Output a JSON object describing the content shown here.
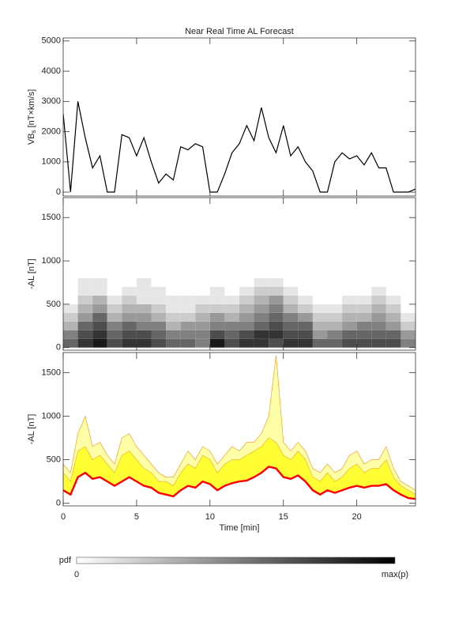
{
  "chart_data": [
    {
      "type": "line",
      "title": "Near Real Time AL Forecast",
      "ylabel": {
        "main": "VB",
        "sub": "s",
        "unit": " [nT×km/s]"
      },
      "x": [
        0,
        0.5,
        1,
        1.5,
        2,
        2.5,
        3,
        3.5,
        4,
        4.5,
        5,
        5.5,
        6,
        6.5,
        7,
        7.5,
        8,
        8.5,
        9,
        9.5,
        10,
        10.5,
        11,
        11.5,
        12,
        12.5,
        13,
        13.5,
        14,
        14.5,
        15,
        15.5,
        16,
        16.5,
        17,
        17.5,
        18,
        18.5,
        19,
        19.5,
        20,
        20.5,
        21,
        21.5,
        22,
        22.5,
        23,
        23.5,
        24
      ],
      "series": [
        {
          "color": "#000000",
          "values": [
            2600,
            0,
            3000,
            1800,
            800,
            1200,
            0,
            0,
            1900,
            1800,
            1200,
            1800,
            1000,
            300,
            600,
            400,
            1500,
            1400,
            1600,
            1500,
            0,
            0,
            600,
            1300,
            1600,
            2200,
            1700,
            2800,
            1800,
            1300,
            2200,
            1200,
            1500,
            1000,
            700,
            0,
            0,
            1000,
            1300,
            1100,
            1200,
            900,
            1300,
            800,
            800,
            0,
            0,
            0,
            100
          ]
        }
      ],
      "xlim": [
        0,
        24
      ],
      "ylim": [
        -130,
        5100
      ],
      "yticks": [
        0,
        1000,
        2000,
        3000,
        4000,
        5000
      ]
    },
    {
      "type": "heatmap",
      "ylabel": "-AL [nT]",
      "x_edges": [
        0,
        1,
        2,
        3,
        4,
        5,
        6,
        7,
        8,
        9,
        10,
        11,
        12,
        13,
        14,
        15,
        16,
        17,
        18,
        19,
        20,
        21,
        22,
        23,
        24
      ],
      "y_edges": [
        0,
        100,
        200,
        300,
        400,
        500,
        600,
        700,
        800
      ],
      "values": [
        [
          0.6,
          0.5,
          0.3,
          0.2,
          0.1,
          0,
          0,
          0
        ],
        [
          0.8,
          0.7,
          0.6,
          0.4,
          0.3,
          0.2,
          0.1,
          0.1
        ],
        [
          0.9,
          0.8,
          0.7,
          0.6,
          0.4,
          0.3,
          0.1,
          0.1
        ],
        [
          0.7,
          0.6,
          0.5,
          0.3,
          0.2,
          0.1,
          0,
          0
        ],
        [
          0.8,
          0.7,
          0.6,
          0.4,
          0.3,
          0.2,
          0.1,
          0
        ],
        [
          0.8,
          0.7,
          0.5,
          0.4,
          0.3,
          0.1,
          0.1,
          0.1
        ],
        [
          0.7,
          0.6,
          0.5,
          0.3,
          0.2,
          0.1,
          0.1,
          0
        ],
        [
          0.6,
          0.5,
          0.3,
          0.2,
          0.1,
          0.1,
          0,
          0
        ],
        [
          0.6,
          0.5,
          0.4,
          0.2,
          0.1,
          0.1,
          0,
          0
        ],
        [
          0.5,
          0.5,
          0.4,
          0.3,
          0.2,
          0.1,
          0,
          0
        ],
        [
          0.9,
          0.7,
          0.5,
          0.4,
          0.2,
          0.1,
          0.1,
          0
        ],
        [
          0.7,
          0.6,
          0.5,
          0.3,
          0.2,
          0.1,
          0,
          0
        ],
        [
          0.8,
          0.7,
          0.5,
          0.4,
          0.3,
          0.2,
          0.1,
          0
        ],
        [
          0.8,
          0.8,
          0.6,
          0.5,
          0.4,
          0.3,
          0.2,
          0.1
        ],
        [
          0.7,
          0.8,
          0.7,
          0.6,
          0.5,
          0.4,
          0.2,
          0.1
        ],
        [
          0.8,
          0.7,
          0.6,
          0.5,
          0.3,
          0.2,
          0.1,
          0
        ],
        [
          0.8,
          0.7,
          0.6,
          0.4,
          0.2,
          0.1,
          0,
          0
        ],
        [
          0.6,
          0.4,
          0.3,
          0.2,
          0.1,
          0,
          0,
          0
        ],
        [
          0.6,
          0.5,
          0.3,
          0.2,
          0.1,
          0,
          0,
          0
        ],
        [
          0.7,
          0.6,
          0.4,
          0.3,
          0.2,
          0.1,
          0,
          0
        ],
        [
          0.7,
          0.6,
          0.5,
          0.3,
          0.2,
          0.1,
          0,
          0
        ],
        [
          0.7,
          0.6,
          0.5,
          0.4,
          0.3,
          0.2,
          0.1,
          0
        ],
        [
          0.7,
          0.6,
          0.4,
          0.3,
          0.2,
          0.1,
          0,
          0
        ],
        [
          0.5,
          0.4,
          0.2,
          0.1,
          0,
          0,
          0,
          0
        ]
      ],
      "zlim": [
        0,
        1
      ],
      "colorbar": {
        "label": "pdf",
        "min_label": "0",
        "max_label": "max(p)"
      },
      "xlim": [
        0,
        24
      ],
      "ylim": [
        -30,
        1730
      ],
      "yticks": [
        0,
        500,
        1000,
        1500
      ]
    },
    {
      "type": "band",
      "ylabel": "-AL [nT]",
      "xlabel": "Time [min]",
      "x": [
        0,
        0.5,
        1,
        1.5,
        2,
        2.5,
        3,
        3.5,
        4,
        4.5,
        5,
        5.5,
        6,
        6.5,
        7,
        7.5,
        8,
        8.5,
        9,
        9.5,
        10,
        10.5,
        11,
        11.5,
        12,
        12.5,
        13,
        13.5,
        14,
        14.5,
        15,
        15.5,
        16,
        16.5,
        17,
        17.5,
        18,
        18.5,
        19,
        19.5,
        20,
        20.5,
        21,
        21.5,
        22,
        22.5,
        23,
        23.5,
        24
      ],
      "series": [
        {
          "color": "#ff0000",
          "values": [
            150,
            100,
            300,
            350,
            280,
            300,
            250,
            200,
            250,
            300,
            250,
            200,
            180,
            120,
            100,
            80,
            150,
            200,
            180,
            250,
            220,
            150,
            200,
            230,
            250,
            260,
            300,
            350,
            420,
            400,
            300,
            280,
            320,
            250,
            150,
            100,
            150,
            120,
            150,
            180,
            200,
            180,
            200,
            200,
            220,
            150,
            100,
            60,
            50
          ]
        },
        {
          "color": "#ffff33",
          "values": [
            350,
            250,
            600,
            650,
            500,
            550,
            450,
            350,
            550,
            600,
            500,
            400,
            350,
            250,
            250,
            200,
            350,
            450,
            400,
            550,
            500,
            350,
            450,
            500,
            500,
            550,
            600,
            650,
            750,
            700,
            550,
            500,
            600,
            500,
            300,
            250,
            350,
            250,
            300,
            400,
            450,
            350,
            400,
            400,
            500,
            300,
            200,
            150,
            100
          ]
        },
        {
          "color": "#ffffa8",
          "values": [
            450,
            350,
            800,
            1000,
            650,
            700,
            550,
            450,
            750,
            800,
            650,
            550,
            450,
            350,
            300,
            300,
            450,
            600,
            500,
            650,
            600,
            450,
            550,
            650,
            600,
            700,
            700,
            800,
            1000,
            1700,
            700,
            600,
            700,
            600,
            400,
            350,
            450,
            350,
            400,
            550,
            600,
            450,
            500,
            500,
            650,
            400,
            250,
            200,
            150
          ]
        }
      ],
      "xlim": [
        0,
        24
      ],
      "ylim": [
        -30,
        1730
      ],
      "yticks": [
        0,
        500,
        1000,
        1500
      ],
      "xticks": [
        0,
        5,
        10,
        15,
        20
      ]
    }
  ]
}
